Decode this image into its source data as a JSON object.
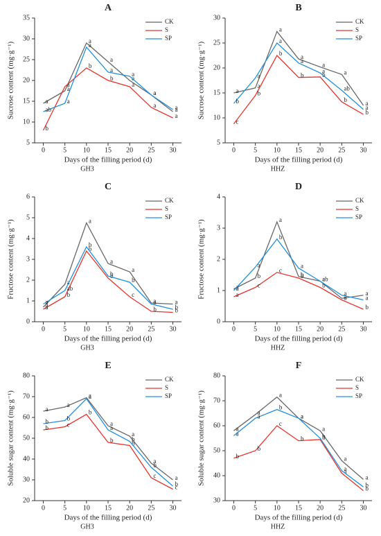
{
  "chart_data": [
    {
      "type": "line",
      "title": "A",
      "ylabel": "Sucrose content (mg·g⁻¹)",
      "xlabel": "Days of the filling period (d)",
      "subtitle": "GH3",
      "x": [
        0,
        5,
        10,
        15,
        20,
        25,
        30
      ],
      "xlim": [
        -2,
        32
      ],
      "xticks": [
        0,
        5,
        10,
        15,
        20,
        25,
        30
      ],
      "ylim": [
        5,
        35
      ],
      "yticks": [
        5,
        10,
        15,
        20,
        25,
        30,
        35
      ],
      "legend": "top-right",
      "series": [
        {
          "name": "CK",
          "color": "#666666",
          "values": [
            14.5,
            17.5,
            29,
            24.5,
            20,
            16.5,
            12.5
          ],
          "letters": [
            "a",
            "a",
            "a",
            "a",
            "a",
            "a",
            "a"
          ]
        },
        {
          "name": "S",
          "color": "#e8322c",
          "values": [
            8,
            18.5,
            23,
            20,
            18.5,
            13.5,
            11
          ],
          "letters": [
            "b",
            "a",
            "b",
            "b",
            "a",
            "a",
            "a"
          ]
        },
        {
          "name": "SP",
          "color": "#1e90e0",
          "values": [
            12.5,
            14.5,
            28,
            22,
            21,
            16.5,
            13
          ],
          "letters": [
            "ab",
            "a",
            "a",
            "a",
            "a",
            "a",
            "a"
          ]
        }
      ]
    },
    {
      "type": "line",
      "title": "B",
      "ylabel": "Sucrose content (mg·g⁻¹)",
      "xlabel": "Days of the filling period (d)",
      "subtitle": "HHZ",
      "x": [
        0,
        5,
        10,
        15,
        20,
        25,
        30
      ],
      "xlim": [
        -2,
        32
      ],
      "xticks": [
        0,
        5,
        10,
        15,
        20,
        25,
        30
      ],
      "ylim": [
        5,
        30
      ],
      "yticks": [
        5,
        10,
        15,
        20,
        25,
        30
      ],
      "legend": "top-right",
      "series": [
        {
          "name": "CK",
          "color": "#666666",
          "values": [
            15,
            16,
            27.3,
            21.8,
            20.2,
            18.7,
            12.5
          ],
          "letters": [
            "a",
            "a",
            "a",
            "a",
            "a",
            "a",
            "a"
          ]
        },
        {
          "name": "S",
          "color": "#e8322c",
          "values": [
            8.8,
            14.5,
            22.5,
            18.1,
            18.2,
            13.2,
            10.7
          ],
          "letters": [
            "c",
            "b",
            "b",
            "b",
            "b",
            "b",
            "b"
          ]
        },
        {
          "name": "SP",
          "color": "#1e90e0",
          "values": [
            12.9,
            18,
            25,
            21,
            19,
            15.5,
            11.7
          ],
          "letters": [
            "b",
            "a",
            "a",
            "a",
            "a",
            "ab",
            "a"
          ]
        }
      ]
    },
    {
      "type": "line",
      "title": "C",
      "ylabel": "Fructose content (mg·g⁻¹)",
      "xlabel": "Days of the filling period (d)",
      "subtitle": "GH3",
      "x": [
        0,
        5,
        10,
        15,
        20,
        25,
        30
      ],
      "xlim": [
        -2,
        32
      ],
      "xticks": [
        0,
        5,
        10,
        15,
        20,
        25,
        30
      ],
      "ylim": [
        0,
        6
      ],
      "yticks": [
        0,
        1,
        2,
        3,
        4,
        5,
        6
      ],
      "legend": "top-right",
      "series": [
        {
          "name": "CK",
          "color": "#666666",
          "values": [
            0.7,
            1.8,
            4.75,
            2.8,
            2.4,
            0.9,
            0.85
          ],
          "letters": [
            "a",
            "a",
            "a",
            "a",
            "a",
            "a",
            "a"
          ]
        },
        {
          "name": "S",
          "color": "#e8322c",
          "values": [
            0.6,
            1.2,
            3.4,
            2.1,
            1.2,
            0.5,
            0.45
          ],
          "letters": [
            "a",
            "b",
            "b",
            "b",
            "c",
            "b",
            "b"
          ]
        },
        {
          "name": "SP",
          "color": "#1e90e0",
          "values": [
            0.85,
            1.5,
            3.6,
            2.2,
            1.9,
            0.85,
            0.6
          ],
          "letters": [
            "a",
            "ab",
            "b",
            "b",
            "b",
            "a",
            "b"
          ]
        }
      ]
    },
    {
      "type": "line",
      "title": "D",
      "ylabel": "Fructose content (mg·g⁻¹)",
      "xlabel": "Days of the filling period (d)",
      "subtitle": "HHZ",
      "x": [
        0,
        5,
        10,
        15,
        20,
        25,
        30
      ],
      "xlim": [
        -2,
        32
      ],
      "xticks": [
        0,
        5,
        10,
        15,
        20,
        25,
        30
      ],
      "ylim": [
        0,
        4
      ],
      "yticks": [
        0,
        1,
        2,
        3,
        4
      ],
      "legend": "top-right",
      "series": [
        {
          "name": "CK",
          "color": "#666666",
          "values": [
            1.05,
            1.4,
            3.2,
            1.45,
            1.3,
            0.75,
            0.85
          ],
          "letters": [
            "a",
            "b",
            "a",
            "b",
            "a",
            "a",
            "a"
          ]
        },
        {
          "name": "S",
          "color": "#e8322c",
          "values": [
            0.8,
            1.1,
            1.58,
            1.4,
            1.1,
            0.7,
            0.4
          ],
          "letters": [
            "a",
            "c",
            "c",
            "b",
            "b",
            "a",
            "b"
          ]
        },
        {
          "name": "SP",
          "color": "#1e90e0",
          "values": [
            1.0,
            1.75,
            2.65,
            1.72,
            1.3,
            0.85,
            0.7
          ],
          "letters": [
            "a",
            "a",
            "b",
            "a",
            "ab",
            "a",
            "a"
          ]
        }
      ]
    },
    {
      "type": "line",
      "title": "E",
      "ylabel": "Soluble sugar content (mg·g⁻¹)",
      "xlabel": "Days of the filling period (d)",
      "subtitle": "GH3",
      "x": [
        0,
        5,
        10,
        15,
        20,
        25,
        30
      ],
      "xlim": [
        -2,
        32
      ],
      "xticks": [
        0,
        5,
        10,
        15,
        20,
        25,
        30
      ],
      "ylim": [
        20,
        80
      ],
      "yticks": [
        20,
        30,
        40,
        50,
        60,
        70,
        80
      ],
      "legend": "top-right",
      "series": [
        {
          "name": "CK",
          "color": "#666666",
          "values": [
            63,
            65,
            69.5,
            56,
            51,
            38,
            30
          ],
          "letters": [
            "a",
            "a",
            "a",
            "a",
            "a",
            "a",
            "a"
          ]
        },
        {
          "name": "S",
          "color": "#e8322c",
          "values": [
            54,
            55.5,
            61.5,
            48,
            46.5,
            31,
            25.5
          ],
          "letters": [
            "b",
            "c",
            "b",
            "b",
            "b",
            "c",
            "c"
          ]
        },
        {
          "name": "SP",
          "color": "#1e90e0",
          "values": [
            57,
            58.5,
            69,
            54,
            48.5,
            36,
            27
          ],
          "letters": [
            "b",
            "b",
            "a",
            "a",
            "b",
            "b",
            "b"
          ]
        }
      ]
    },
    {
      "type": "line",
      "title": "F",
      "ylabel": "Soluble sugar content (mg·g⁻¹)",
      "xlabel": "Days of the filling period (d)",
      "subtitle": "HHZ",
      "x": [
        0,
        5,
        10,
        15,
        20,
        25,
        30
      ],
      "xlim": [
        -2,
        32
      ],
      "xticks": [
        0,
        5,
        10,
        15,
        20,
        25,
        30
      ],
      "ylim": [
        30,
        80
      ],
      "yticks": [
        30,
        40,
        50,
        60,
        70,
        80
      ],
      "legend": "top-right",
      "series": [
        {
          "name": "CK",
          "color": "#666666",
          "values": [
            58,
            64.5,
            71.5,
            63,
            58,
            46,
            38.5
          ],
          "letters": [
            "a",
            "a",
            "a",
            "a",
            "a",
            "a",
            "a"
          ]
        },
        {
          "name": "S",
          "color": "#e8322c",
          "values": [
            47,
            50,
            60,
            54,
            54.5,
            41,
            34
          ],
          "letters": [
            "b",
            "b",
            "c",
            "b",
            "b",
            "a",
            "b"
          ]
        },
        {
          "name": "SP",
          "color": "#1e90e0",
          "values": [
            56,
            63,
            66.5,
            63,
            55,
            42,
            35.5
          ],
          "letters": [
            "a",
            "a",
            "b",
            "a",
            "b",
            "a",
            "b"
          ]
        }
      ]
    }
  ]
}
